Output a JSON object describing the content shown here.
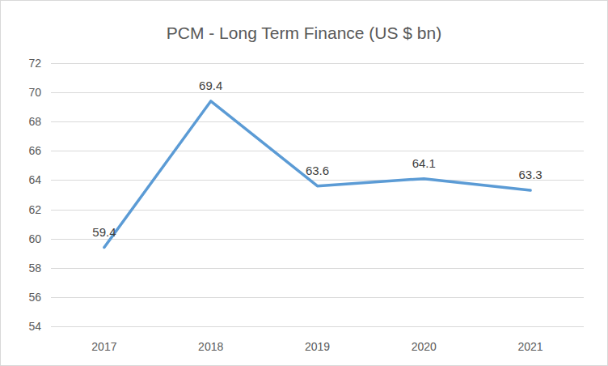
{
  "chart_data": {
    "type": "line",
    "title": "PCM - Long Term Finance (US $ bn)",
    "categories": [
      "2017",
      "2018",
      "2019",
      "2020",
      "2021"
    ],
    "values": [
      59.4,
      69.4,
      63.6,
      64.1,
      63.3
    ],
    "color": "#5b9bd5",
    "ylim": [
      54,
      72
    ],
    "yticks": [
      54,
      56,
      58,
      60,
      62,
      64,
      66,
      68,
      70,
      72
    ],
    "grid": true,
    "data_labels": true
  }
}
